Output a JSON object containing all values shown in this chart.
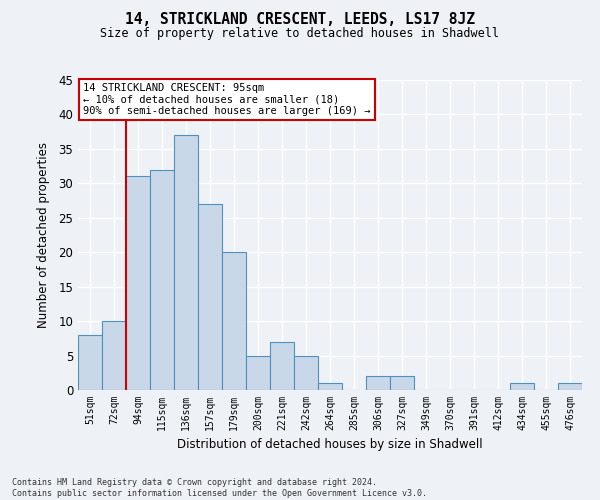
{
  "title": "14, STRICKLAND CRESCENT, LEEDS, LS17 8JZ",
  "subtitle": "Size of property relative to detached houses in Shadwell",
  "xlabel": "Distribution of detached houses by size in Shadwell",
  "ylabel": "Number of detached properties",
  "bar_labels": [
    "51sqm",
    "72sqm",
    "94sqm",
    "115sqm",
    "136sqm",
    "157sqm",
    "179sqm",
    "200sqm",
    "221sqm",
    "242sqm",
    "264sqm",
    "285sqm",
    "306sqm",
    "327sqm",
    "349sqm",
    "370sqm",
    "391sqm",
    "412sqm",
    "434sqm",
    "455sqm",
    "476sqm"
  ],
  "bar_heights": [
    8,
    10,
    31,
    32,
    37,
    27,
    20,
    5,
    7,
    5,
    1,
    0,
    2,
    2,
    0,
    0,
    0,
    0,
    1,
    0,
    1
  ],
  "bar_color": "#c8d8e8",
  "bar_edge_color": "#5090c0",
  "vline_x_index": 2,
  "vline_color": "#cc0000",
  "ylim": [
    0,
    45
  ],
  "yticks": [
    0,
    5,
    10,
    15,
    20,
    25,
    30,
    35,
    40,
    45
  ],
  "annotation_text": "14 STRICKLAND CRESCENT: 95sqm\n← 10% of detached houses are smaller (18)\n90% of semi-detached houses are larger (169) →",
  "annotation_box_facecolor": "#ffffff",
  "annotation_box_edgecolor": "#cc0000",
  "footer_line1": "Contains HM Land Registry data © Crown copyright and database right 2024.",
  "footer_line2": "Contains public sector information licensed under the Open Government Licence v3.0.",
  "background_color": "#eef2f6",
  "grid_color": "#ffffff"
}
